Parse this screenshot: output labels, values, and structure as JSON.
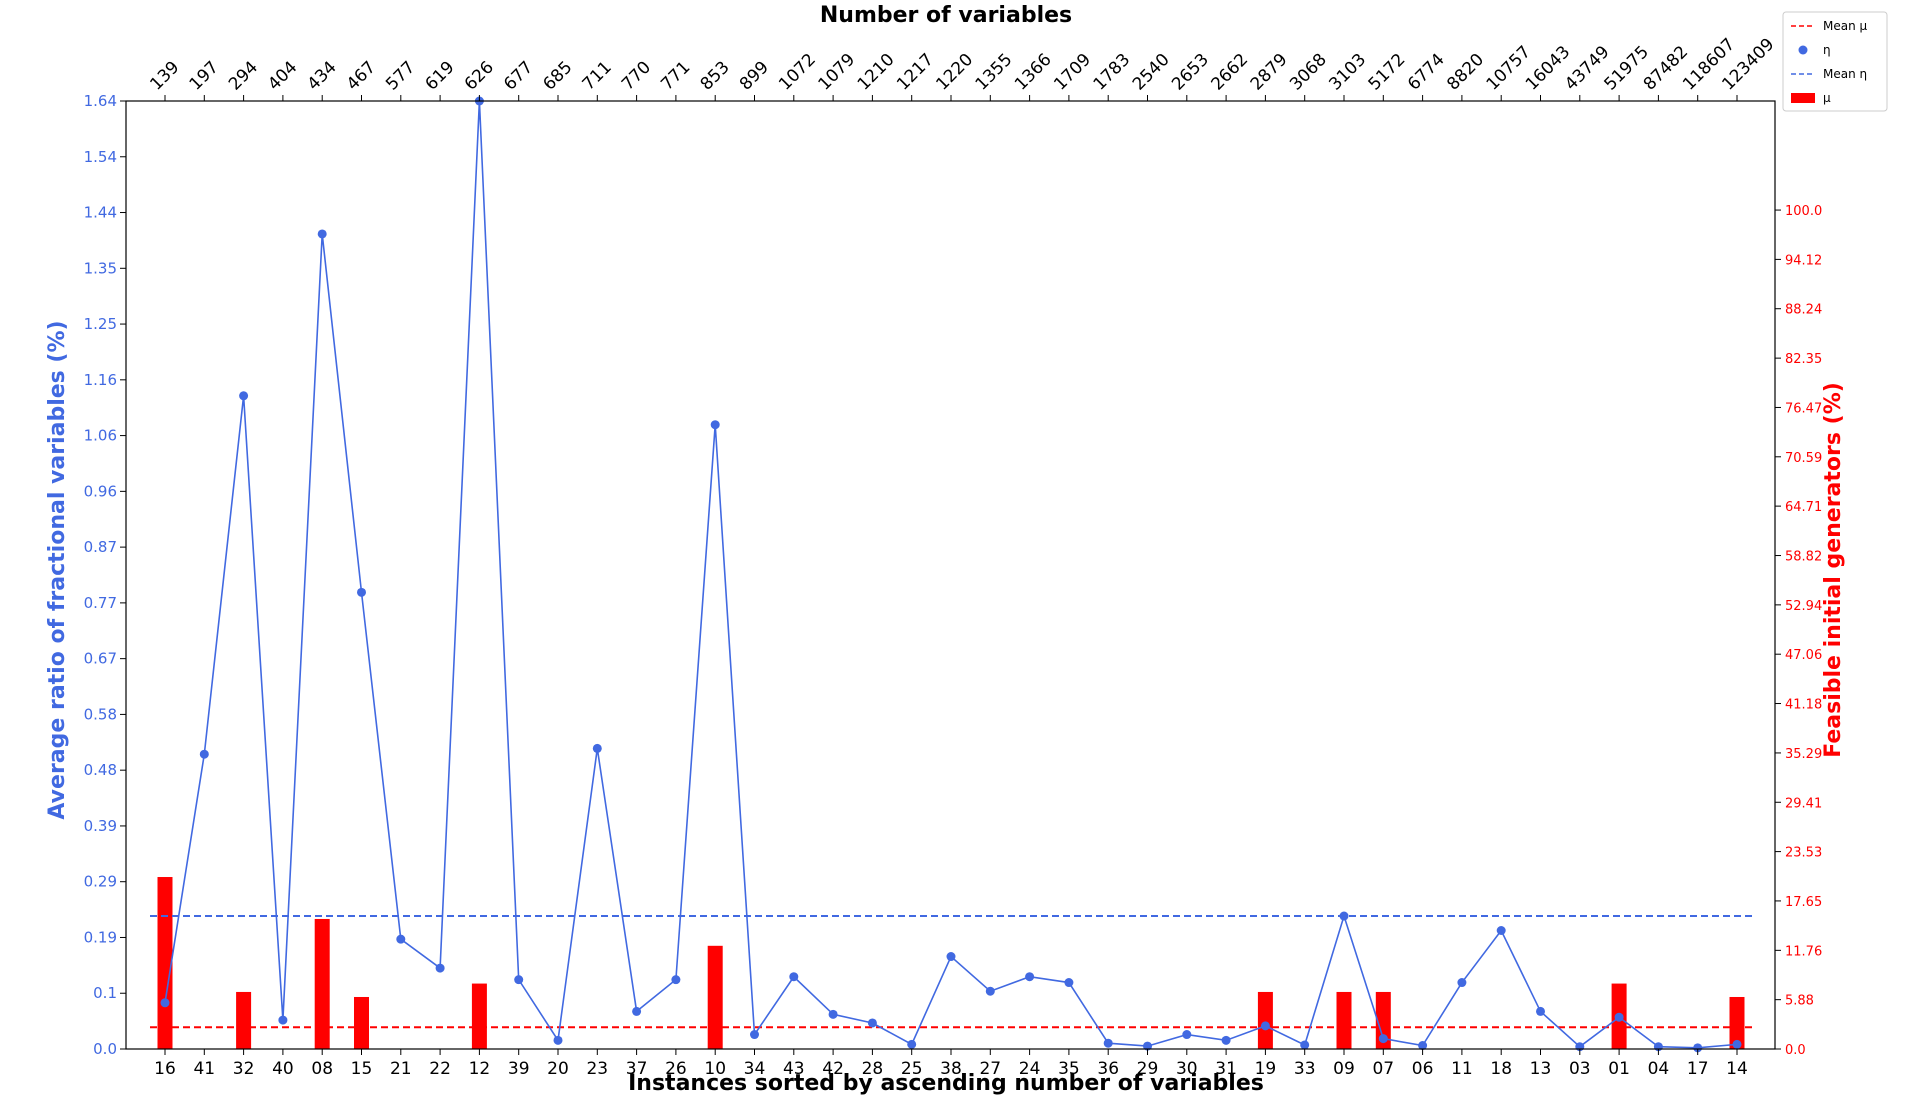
{
  "chart_data": {
    "type": "bar+line",
    "title": "Number of variables",
    "xlabel": "Instances sorted by ascending number of variables",
    "ylabel_left": "Average ratio of fractional variables (%)",
    "ylabel_right": "Feasible initial generators (%)",
    "ylim_left": [
      0.0,
      1.64
    ],
    "ylim_right": [
      0.0,
      113.0
    ],
    "yticks_left": [
      "0.0",
      "0.1",
      "0.19",
      "0.29",
      "0.39",
      "0.48",
      "0.58",
      "0.67",
      "0.77",
      "0.87",
      "0.96",
      "1.06",
      "1.16",
      "1.25",
      "1.35",
      "1.44",
      "1.54",
      "1.64"
    ],
    "yticks_right": [
      "0.0",
      "5.88",
      "11.76",
      "17.65",
      "23.53",
      "29.41",
      "35.29",
      "41.18",
      "47.06",
      "52.94",
      "58.82",
      "64.71",
      "70.59",
      "76.47",
      "82.35",
      "88.24",
      "94.12",
      "100.0"
    ],
    "categories": [
      "16",
      "41",
      "32",
      "40",
      "08",
      "15",
      "21",
      "22",
      "12",
      "39",
      "20",
      "23",
      "37",
      "26",
      "10",
      "34",
      "43",
      "42",
      "28",
      "25",
      "38",
      "27",
      "24",
      "35",
      "36",
      "29",
      "30",
      "31",
      "19",
      "33",
      "09",
      "07",
      "06",
      "11",
      "18",
      "13",
      "03",
      "01",
      "04",
      "17",
      "14"
    ],
    "num_variables": [
      "139",
      "197",
      "294",
      "404",
      "434",
      "467",
      "577",
      "619",
      "626",
      "677",
      "685",
      "711",
      "770",
      "771",
      "853",
      "899",
      "1072",
      "1079",
      "1210",
      "1217",
      "1220",
      "1355",
      "1366",
      "1709",
      "1783",
      "2540",
      "2653",
      "2662",
      "2879",
      "3068",
      "3103",
      "5172",
      "6774",
      "8820",
      "10757",
      "16043",
      "43749",
      "51975",
      "87482",
      "118607",
      "123409"
    ],
    "series": [
      {
        "name": "η",
        "axis": "left",
        "kind": "line",
        "color": "#4169e1",
        "values": [
          0.08,
          0.51,
          1.13,
          0.05,
          1.41,
          0.79,
          0.19,
          0.14,
          1.64,
          0.12,
          0.015,
          0.52,
          0.065,
          0.12,
          1.08,
          0.025,
          0.125,
          0.06,
          0.045,
          0.008,
          0.16,
          0.1,
          0.125,
          0.115,
          0.01,
          0.005,
          0.025,
          0.015,
          0.04,
          0.007,
          0.23,
          0.018,
          0.006,
          0.115,
          0.205,
          0.065,
          0.004,
          0.055,
          0.004,
          0.002,
          0.008
        ]
      },
      {
        "name": "μ",
        "axis": "right",
        "kind": "bar",
        "color": "#ff0000",
        "values": [
          20.5,
          0,
          6.8,
          0,
          15.5,
          6.2,
          0,
          0,
          7.8,
          0,
          0,
          0,
          0,
          0,
          12.3,
          0,
          0,
          0,
          0,
          0,
          0,
          0,
          0,
          0,
          0,
          0,
          0,
          0,
          6.8,
          0,
          6.8,
          6.8,
          0,
          0,
          0,
          0,
          0,
          7.8,
          0,
          0,
          6.2
        ]
      }
    ],
    "mean_eta": 0.23,
    "mean_mu": 2.6,
    "legend": {
      "position": "top-right",
      "entries": [
        {
          "label": "Mean μ",
          "kind": "dashed",
          "color": "#ff0000"
        },
        {
          "label": "η",
          "kind": "dot",
          "color": "#4169e1"
        },
        {
          "label": "Mean η",
          "kind": "dashed",
          "color": "#4169e1"
        },
        {
          "label": "μ",
          "kind": "bar",
          "color": "#ff0000"
        }
      ]
    }
  }
}
